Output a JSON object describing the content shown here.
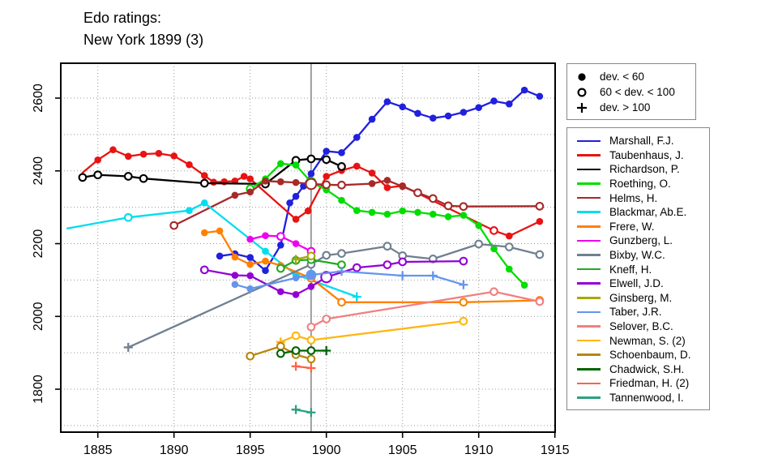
{
  "title": {
    "line1": "Edo ratings:",
    "line2": "New York 1899 (3)"
  },
  "marker_legend": {
    "items": [
      {
        "icon": "filled-circle-icon",
        "label": "dev. < 60"
      },
      {
        "icon": "open-circle-icon",
        "label": "60 < dev. < 100"
      },
      {
        "icon": "plus-icon",
        "label": "dev. > 100"
      }
    ]
  },
  "chart_data": {
    "type": "line",
    "title": "Edo ratings: New York 1899 (3)",
    "xlabel": "",
    "ylabel": "",
    "x_ticks": [
      1885,
      1890,
      1895,
      1900,
      1905,
      1910,
      1915
    ],
    "y_ticks": [
      1800,
      2000,
      2200,
      2400,
      2600
    ],
    "x_range": [
      1882.5,
      1915
    ],
    "y_range": [
      1668,
      2698
    ],
    "grid": {
      "x_step_years": 5,
      "y_step_points": 100,
      "style": "dotted",
      "grid_on": true
    },
    "event_line_year": 1899,
    "legend_position": "right",
    "marker_meaning": {
      "f": "dev. < 60",
      "o": "60 < dev. < 100",
      "p": "dev. > 100",
      "n": "no marker"
    },
    "point_format": "[year, rating, marker f|o|p|n, optional b=big]",
    "series": [
      {
        "name": "Marshall, F.J.",
        "color": "#2020DD",
        "points": [
          [
            1893,
            2166,
            "f"
          ],
          [
            1894,
            2172,
            "f"
          ],
          [
            1895,
            2162,
            "f"
          ],
          [
            1896,
            2126,
            "f"
          ],
          [
            1897,
            2196,
            "f"
          ],
          [
            1897.6,
            2312,
            "f"
          ],
          [
            1898,
            2330,
            "f"
          ],
          [
            1898.5,
            2358,
            "f"
          ],
          [
            1899,
            2392,
            "f"
          ],
          [
            1900,
            2454,
            "f"
          ],
          [
            1901,
            2450,
            "f"
          ],
          [
            1902,
            2492,
            "f"
          ],
          [
            1903,
            2542,
            "f"
          ],
          [
            1904,
            2590,
            "f"
          ],
          [
            1905,
            2576,
            "f"
          ],
          [
            1906,
            2558,
            "f"
          ],
          [
            1907,
            2545,
            "f"
          ],
          [
            1908,
            2551,
            "f"
          ],
          [
            1909,
            2561,
            "f"
          ],
          [
            1910,
            2574,
            "f"
          ],
          [
            1911,
            2592,
            "f"
          ],
          [
            1912,
            2584,
            "f"
          ],
          [
            1913,
            2622,
            "f"
          ],
          [
            1914,
            2605,
            "f"
          ]
        ]
      },
      {
        "name": "Taubenhaus, J.",
        "color": "#E81313",
        "points": [
          [
            1884,
            2395,
            "n"
          ],
          [
            1885,
            2430,
            "f"
          ],
          [
            1886,
            2458,
            "f"
          ],
          [
            1887,
            2440,
            "f"
          ],
          [
            1888,
            2446,
            "f"
          ],
          [
            1889,
            2448,
            "f"
          ],
          [
            1890,
            2441,
            "f"
          ],
          [
            1891,
            2417,
            "f"
          ],
          [
            1892,
            2387,
            "f"
          ],
          [
            1892.6,
            2369,
            "f"
          ],
          [
            1893.3,
            2370,
            "f"
          ],
          [
            1894,
            2372,
            "f"
          ],
          [
            1894.6,
            2385,
            "f"
          ],
          [
            1895,
            2378,
            "f"
          ],
          [
            1898,
            2267,
            "f"
          ],
          [
            1898.8,
            2290,
            "f"
          ],
          [
            1900,
            2385,
            "f"
          ],
          [
            1901,
            2401,
            "f"
          ],
          [
            1902,
            2413,
            "f"
          ],
          [
            1903,
            2394,
            "f"
          ],
          [
            1904,
            2354,
            "f"
          ],
          [
            1905,
            2359,
            "f"
          ],
          [
            1911,
            2236,
            "o"
          ],
          [
            1912,
            2221,
            "f"
          ],
          [
            1914,
            2261,
            "f"
          ]
        ]
      },
      {
        "name": "Richardson, P.",
        "color": "#000000",
        "points": [
          [
            1884,
            2382,
            "o"
          ],
          [
            1885,
            2389,
            "o"
          ],
          [
            1887,
            2385,
            "o"
          ],
          [
            1888,
            2379,
            "o"
          ],
          [
            1892,
            2366,
            "o"
          ],
          [
            1896,
            2364,
            "o"
          ],
          [
            1898,
            2429,
            "o"
          ],
          [
            1899,
            2433,
            "o"
          ],
          [
            1900,
            2431,
            "o"
          ],
          [
            1901,
            2412,
            "o"
          ]
        ]
      },
      {
        "name": "Roething, O.",
        "color": "#00DD00",
        "points": [
          [
            1895,
            2351,
            "o"
          ],
          [
            1896,
            2378,
            "f"
          ],
          [
            1897,
            2420,
            "f"
          ],
          [
            1898,
            2416,
            "f"
          ],
          [
            1899,
            2369,
            "f",
            "b"
          ],
          [
            1900,
            2348,
            "f"
          ],
          [
            1901,
            2319,
            "f"
          ],
          [
            1902,
            2291,
            "f"
          ],
          [
            1903,
            2286,
            "f"
          ],
          [
            1904,
            2281,
            "f"
          ],
          [
            1905,
            2290,
            "f"
          ],
          [
            1906,
            2286,
            "f"
          ],
          [
            1907,
            2281,
            "f"
          ],
          [
            1908,
            2274,
            "f"
          ],
          [
            1909,
            2278,
            "f"
          ],
          [
            1910,
            2250,
            "f"
          ],
          [
            1911,
            2186,
            "f"
          ],
          [
            1912,
            2130,
            "f"
          ],
          [
            1913,
            2086,
            "f"
          ]
        ]
      },
      {
        "name": "Helms, H.",
        "color": "#A52A2A",
        "points": [
          [
            1890,
            2250,
            "o"
          ],
          [
            1894,
            2333,
            "f"
          ],
          [
            1895,
            2342,
            "f"
          ],
          [
            1896,
            2372,
            "f"
          ],
          [
            1897,
            2370,
            "f"
          ],
          [
            1898,
            2368,
            "f"
          ],
          [
            1899,
            2364,
            "o",
            "b"
          ],
          [
            1900,
            2362,
            "o"
          ],
          [
            1901,
            2361,
            "o"
          ],
          [
            1903,
            2365,
            "f"
          ],
          [
            1904,
            2374,
            "f"
          ],
          [
            1905,
            2357,
            "f"
          ],
          [
            1906,
            2340,
            "o"
          ],
          [
            1907,
            2324,
            "o"
          ],
          [
            1908,
            2304,
            "o"
          ],
          [
            1909,
            2302,
            "o"
          ],
          [
            1914,
            2303,
            "o"
          ]
        ]
      },
      {
        "name": "Blackmar, Ab.E.",
        "color": "#00DDEE",
        "points": [
          [
            1883,
            2242,
            "n"
          ],
          [
            1887,
            2272,
            "o"
          ],
          [
            1891,
            2291,
            "f"
          ],
          [
            1892,
            2312,
            "f"
          ],
          [
            1896,
            2179,
            "f"
          ],
          [
            1898,
            2115,
            "f"
          ],
          [
            1902,
            2054,
            "p"
          ]
        ]
      },
      {
        "name": "Frere, W.",
        "color": "#FF8000",
        "points": [
          [
            1892,
            2230,
            "f"
          ],
          [
            1893,
            2235,
            "f"
          ],
          [
            1894,
            2163,
            "f"
          ],
          [
            1895,
            2143,
            "f"
          ],
          [
            1896,
            2152,
            "f"
          ],
          [
            1897,
            2140,
            "f"
          ],
          [
            1899,
            2105,
            "o"
          ],
          [
            1901,
            2039,
            "o"
          ],
          [
            1909,
            2039,
            "o"
          ],
          [
            1914,
            2044,
            "o"
          ]
        ]
      },
      {
        "name": "Gunzberg, L.",
        "color": "#EE00EE",
        "points": [
          [
            1895,
            2212,
            "f"
          ],
          [
            1896,
            2222,
            "f"
          ],
          [
            1897,
            2220,
            "o"
          ],
          [
            1898,
            2200,
            "f"
          ],
          [
            1899,
            2179,
            "o"
          ]
        ]
      },
      {
        "name": "Bixby, W.C.",
        "color": "#708090",
        "points": [
          [
            1887,
            1915,
            "p"
          ],
          [
            1899,
            2143,
            "o"
          ],
          [
            1900,
            2168,
            "o"
          ],
          [
            1901,
            2173,
            "o"
          ],
          [
            1904,
            2193,
            "o"
          ],
          [
            1905,
            2167,
            "o"
          ],
          [
            1907,
            2158,
            "o"
          ],
          [
            1910,
            2199,
            "o"
          ],
          [
            1912,
            2191,
            "o"
          ],
          [
            1914,
            2170,
            "o"
          ]
        ]
      },
      {
        "name": "Kneff, H.",
        "color": "#22AA22",
        "points": [
          [
            1897,
            2132,
            "o"
          ],
          [
            1898,
            2154,
            "o"
          ],
          [
            1899,
            2156,
            "o"
          ],
          [
            1901,
            2142,
            "o"
          ]
        ]
      },
      {
        "name": "Elwell, J.D.",
        "color": "#9400D3",
        "points": [
          [
            1892,
            2128,
            "o"
          ],
          [
            1894,
            2113,
            "f"
          ],
          [
            1895,
            2112,
            "f"
          ],
          [
            1897,
            2068,
            "f"
          ],
          [
            1898,
            2060,
            "f"
          ],
          [
            1899,
            2082,
            "f"
          ],
          [
            1900,
            2108,
            "o",
            "b"
          ],
          [
            1902,
            2134,
            "o"
          ],
          [
            1904,
            2142,
            "o"
          ],
          [
            1905,
            2150,
            "o"
          ],
          [
            1909,
            2152,
            "o"
          ]
        ]
      },
      {
        "name": "Ginsberg, M.",
        "color": "#A8A800",
        "points": [
          [
            1898,
            2157,
            "p"
          ],
          [
            1899,
            2166,
            "o"
          ]
        ]
      },
      {
        "name": "Taber, J.R.",
        "color": "#6495ED",
        "points": [
          [
            1894,
            2088,
            "f"
          ],
          [
            1895,
            2076,
            "f"
          ],
          [
            1898,
            2106,
            "f"
          ],
          [
            1899,
            2114,
            "f",
            "b"
          ],
          [
            1901,
            2124,
            "p"
          ],
          [
            1905,
            2112,
            "p"
          ],
          [
            1907,
            2112,
            "p"
          ],
          [
            1909,
            2087,
            "p"
          ]
        ]
      },
      {
        "name": "Selover, B.C.",
        "color": "#F08080",
        "points": [
          [
            1899,
            1971,
            "o"
          ],
          [
            1900,
            1993,
            "o"
          ],
          [
            1911,
            2068,
            "o"
          ],
          [
            1914,
            2041,
            "o"
          ]
        ]
      },
      {
        "name": "Newman, S. (2)",
        "color": "#FFB612",
        "points": [
          [
            1897,
            1930,
            "p"
          ],
          [
            1898,
            1947,
            "o"
          ],
          [
            1899,
            1935,
            "o"
          ],
          [
            1909,
            1987,
            "o"
          ]
        ]
      },
      {
        "name": "Schoenbaum, D.",
        "color": "#B8860B",
        "points": [
          [
            1895,
            1891,
            "o"
          ],
          [
            1897,
            1918,
            "o"
          ],
          [
            1898,
            1895,
            "o"
          ],
          [
            1899,
            1883,
            "o"
          ]
        ]
      },
      {
        "name": "Chadwick, S.H.",
        "color": "#006400",
        "points": [
          [
            1897,
            1898,
            "o"
          ],
          [
            1898,
            1906,
            "o"
          ],
          [
            1899,
            1906,
            "o"
          ],
          [
            1900,
            1906,
            "p"
          ]
        ]
      },
      {
        "name": "Friedman, H. (2)",
        "color": "#FF6347",
        "points": [
          [
            1898,
            1863,
            "p"
          ],
          [
            1899,
            1858,
            "p"
          ]
        ]
      },
      {
        "name": "Tannenwood, I.",
        "color": "#2AA181",
        "points": [
          [
            1898,
            1744,
            "p"
          ],
          [
            1899,
            1736,
            "p"
          ]
        ]
      }
    ]
  }
}
